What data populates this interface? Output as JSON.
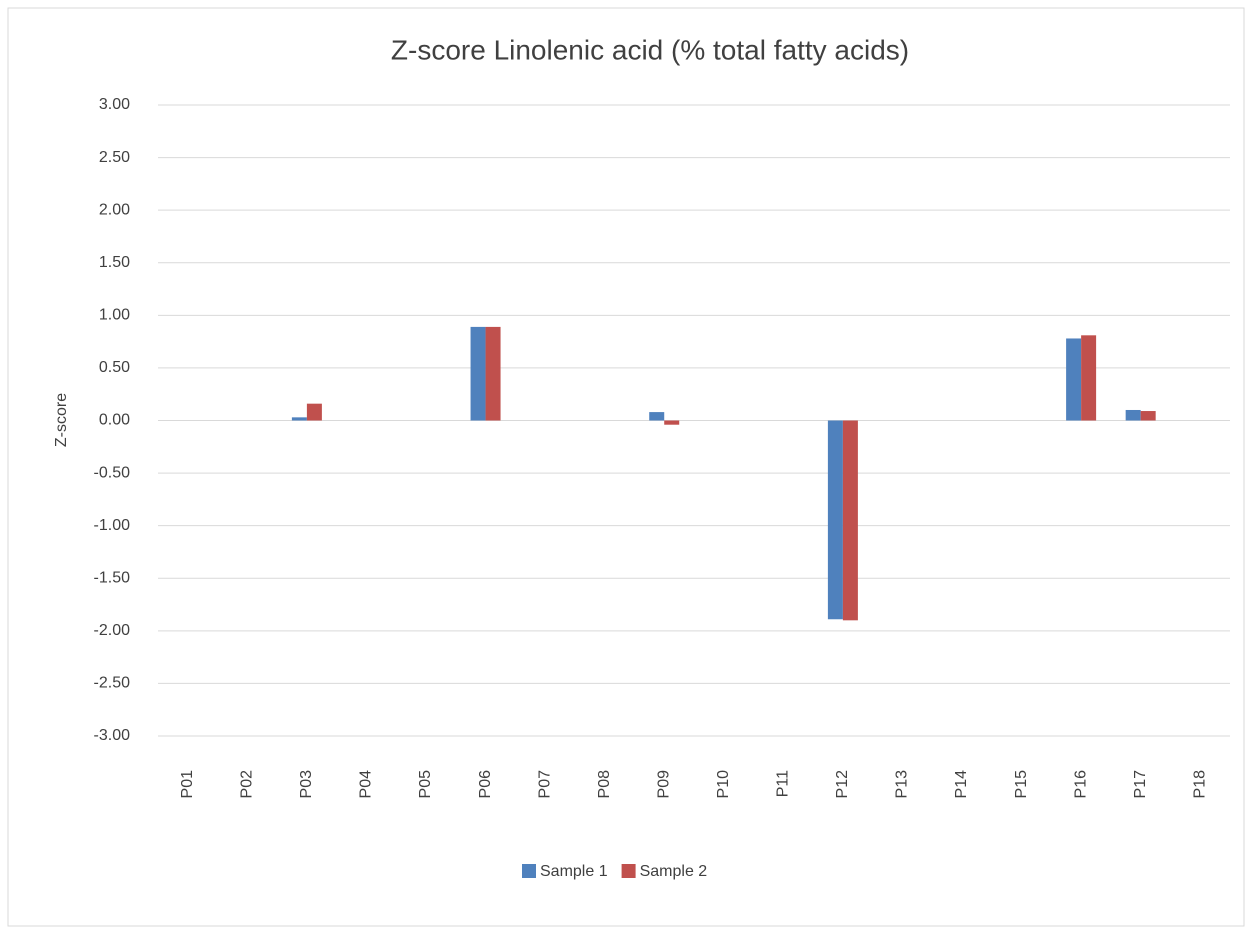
{
  "chart_data": {
    "type": "bar",
    "title": "Z-score Linolenic acid (% total fatty acids)",
    "y_label": "Z-score",
    "categories": [
      "P01",
      "P02",
      "P03",
      "P04",
      "P05",
      "P06",
      "P07",
      "P08",
      "P09",
      "P10",
      "P11",
      "P12",
      "P13",
      "P14",
      "P15",
      "P16",
      "P17",
      "P18"
    ],
    "series": [
      {
        "name": "Sample 1",
        "color": "#4f81bd",
        "values": [
          null,
          null,
          0.03,
          null,
          null,
          0.89,
          null,
          null,
          0.08,
          null,
          null,
          -1.89,
          null,
          null,
          null,
          0.78,
          0.1,
          null
        ]
      },
      {
        "name": "Sample 2",
        "color": "#c0504d",
        "values": [
          null,
          null,
          0.16,
          null,
          null,
          0.89,
          null,
          null,
          -0.04,
          null,
          null,
          -1.9,
          null,
          null,
          null,
          0.81,
          0.09,
          null
        ]
      }
    ],
    "ylim": [
      -3,
      3
    ],
    "yticks": [
      {
        "value": 3,
        "label": "3.00"
      },
      {
        "value": 2.5,
        "label": "2.50"
      },
      {
        "value": 2,
        "label": "2.00"
      },
      {
        "value": 1.5,
        "label": "1.50"
      },
      {
        "value": 1,
        "label": "1.00"
      },
      {
        "value": 0.5,
        "label": "0.50"
      },
      {
        "value": 0,
        "label": "0.00"
      },
      {
        "value": -0.5,
        "label": "-0.50"
      },
      {
        "value": -1,
        "label": "-1.00"
      },
      {
        "value": -1.5,
        "label": "-1.50"
      },
      {
        "value": -2,
        "label": "-2.00"
      },
      {
        "value": -2.5,
        "label": "-2.50"
      },
      {
        "value": -3,
        "label": "-3.00"
      }
    ],
    "grid": true,
    "legend": "bottom"
  }
}
